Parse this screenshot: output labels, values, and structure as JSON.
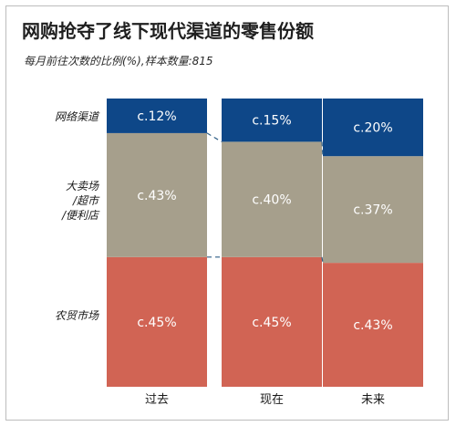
{
  "title": "网购抢夺了线下现代渠道的零售份额",
  "subtitle": "每月前往次数的比例(%),样本数量:815",
  "row_labels": {
    "online": "网络渠道",
    "hyper_line1": "大卖场",
    "hyper_line2": "/超市",
    "hyper_line3": "/便利店",
    "wet_market": "农贸市场"
  },
  "colors": {
    "online": "#0e4788",
    "modern": "#a69f8c",
    "wet_market": "#d16454",
    "connector": "#2f5f86"
  },
  "chart_data": {
    "type": "bar",
    "stacked": true,
    "normalized": true,
    "categories": [
      "过去",
      "现在",
      "未来"
    ],
    "series": [
      {
        "name": "农贸市场",
        "values": [
          45,
          45,
          43
        ],
        "labels": [
          "c.45%",
          "c.45%",
          "c.43%"
        ]
      },
      {
        "name": "大卖场/超市/便利店",
        "values": [
          43,
          40,
          37
        ],
        "labels": [
          "c.43%",
          "c.40%",
          "c.37%"
        ]
      },
      {
        "name": "网络渠道",
        "values": [
          12,
          15,
          20
        ],
        "labels": [
          "c.12%",
          "c.15%",
          "c.20%"
        ]
      }
    ],
    "unit": "%",
    "ylim": [
      0,
      100
    ],
    "connector_lines": true
  }
}
